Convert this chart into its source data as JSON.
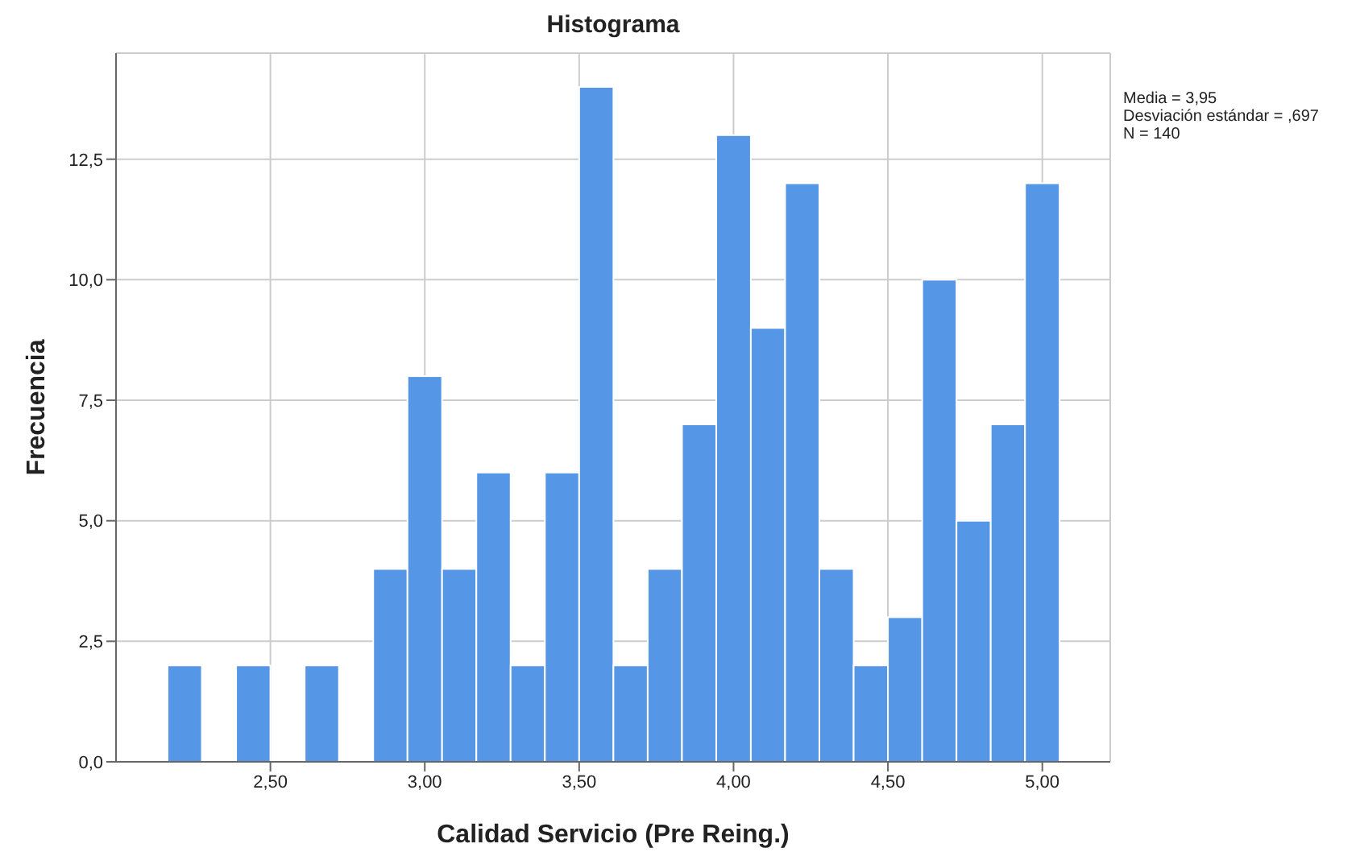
{
  "chart_data": {
    "type": "histogram",
    "title": "Histograma",
    "xlabel": "Calidad Servicio (Pre Reing.)",
    "ylabel": "Frecuencia",
    "bins": [
      2.167,
      2.278,
      2.389,
      2.5,
      2.611,
      2.722,
      2.833,
      2.944,
      3.056,
      3.167,
      3.278,
      3.389,
      3.5,
      3.611,
      3.722,
      3.833,
      3.944,
      4.056,
      4.167,
      4.278,
      4.389,
      4.5,
      4.611,
      4.722,
      4.833,
      4.944,
      5.056
    ],
    "values": [
      2,
      0,
      2,
      0,
      2,
      0,
      4,
      8,
      4,
      6,
      2,
      6,
      14,
      2,
      4,
      7,
      13,
      9,
      12,
      4,
      2,
      3,
      10,
      5,
      7,
      12
    ],
    "color": "#5596e6",
    "xlim": [
      2.0,
      5.22
    ],
    "xticks": [
      {
        "value": 2.5,
        "label": "2,50"
      },
      {
        "value": 3,
        "label": "3,00"
      },
      {
        "value": 3.5,
        "label": "3,50"
      },
      {
        "value": 4,
        "label": "4,00"
      },
      {
        "value": 4.5,
        "label": "4,50"
      },
      {
        "value": 5,
        "label": "5,00"
      }
    ],
    "ylim": [
      0,
      14.7
    ],
    "yticks": [
      {
        "value": 0,
        "label": "0,0"
      },
      {
        "value": 2.5,
        "label": "2,5"
      },
      {
        "value": 5,
        "label": "5,0"
      },
      {
        "value": 7.5,
        "label": "7,5"
      },
      {
        "value": 10,
        "label": "10,0"
      },
      {
        "value": 12.5,
        "label": "12,5"
      }
    ],
    "grid": true,
    "annotations": [
      "Media = 3,95",
      "Desviación estándar = ,697",
      "N = 140"
    ]
  }
}
